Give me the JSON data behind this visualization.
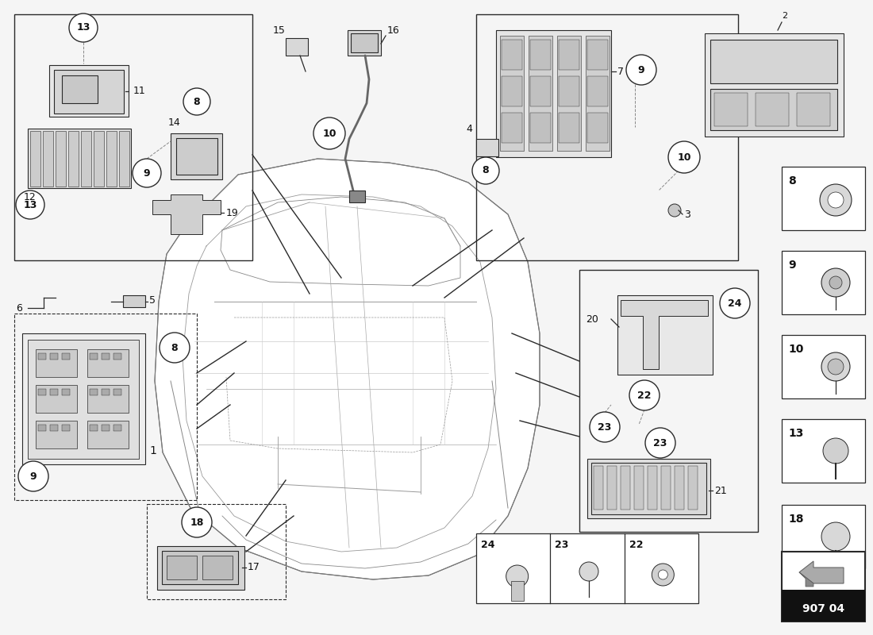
{
  "page_code": "907 04",
  "bg_color": "#f5f5f5",
  "line_color": "#2a2a2a",
  "text_color": "#111111",
  "mid_gray": "#888888",
  "light_gray": "#d8d8d8",
  "dark_gray": "#555555",
  "part_number": "907 04",
  "right_list": [
    {
      "num": "18",
      "fy": 0.845
    },
    {
      "num": "13",
      "fy": 0.71
    },
    {
      "num": "10",
      "fy": 0.578
    },
    {
      "num": "9",
      "fy": 0.445
    },
    {
      "num": "8",
      "fy": 0.313
    }
  ],
  "bottom_parts": [
    {
      "num": "24",
      "fx": 0.572
    },
    {
      "num": "23",
      "fx": 0.645
    },
    {
      "num": "22",
      "fx": 0.718
    }
  ]
}
